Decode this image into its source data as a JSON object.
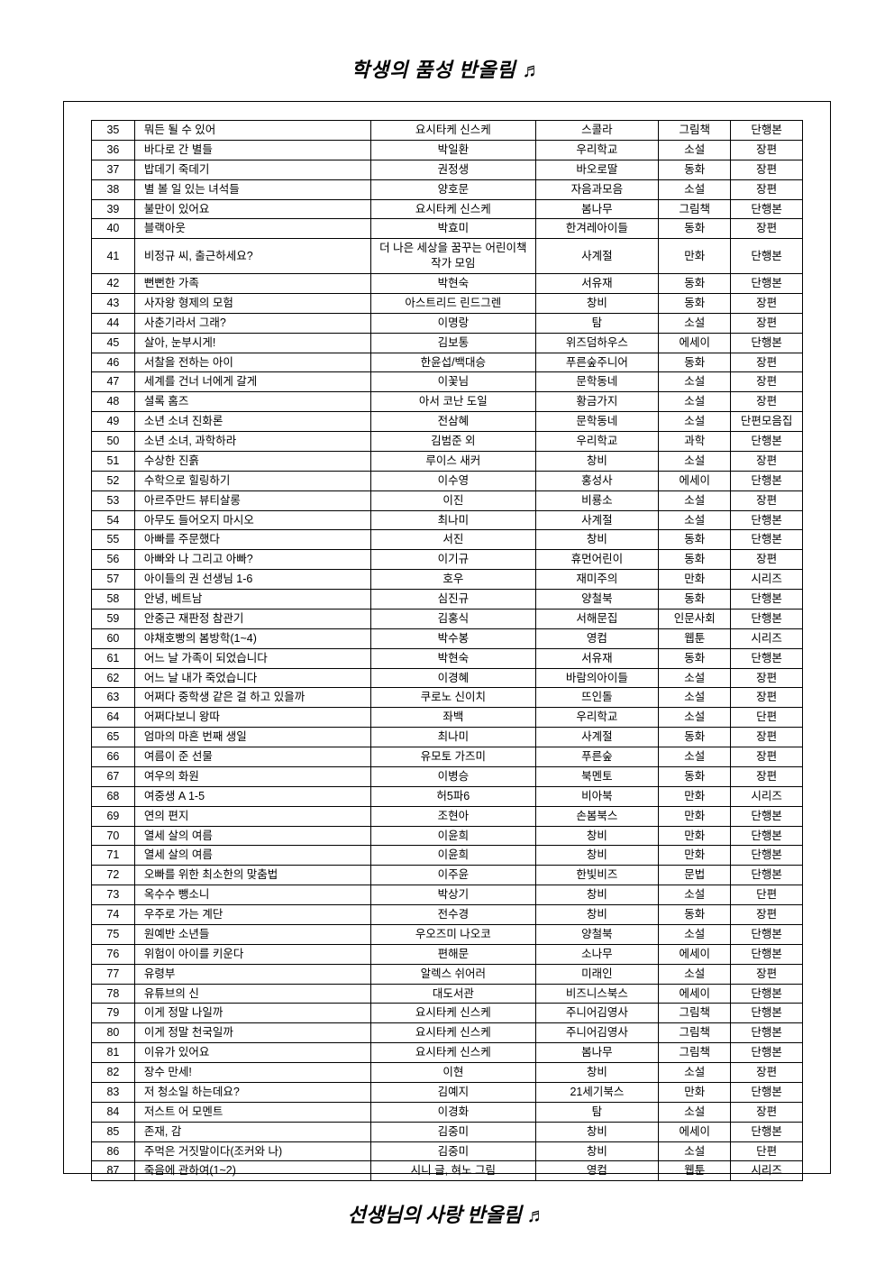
{
  "header": "학생의 품성 반올림 ♬",
  "footer": "선생님의 사랑 반올림 ♬",
  "columns": [
    "num",
    "title",
    "author",
    "publisher",
    "category",
    "format"
  ],
  "rows": [
    {
      "n": "35",
      "t": "뭐든 될 수 있어",
      "a": "요시타케 신스케",
      "p": "스콜라",
      "c": "그림책",
      "f": "단행본"
    },
    {
      "n": "36",
      "t": "바다로 간 별들",
      "a": "박일환",
      "p": "우리학교",
      "c": "소설",
      "f": "장편"
    },
    {
      "n": "37",
      "t": "밥데기 죽데기",
      "a": "권정생",
      "p": "바오로딸",
      "c": "동화",
      "f": "장편"
    },
    {
      "n": "38",
      "t": "별 볼 일 있는 녀석들",
      "a": "양호문",
      "p": "자음과모음",
      "c": "소설",
      "f": "장편"
    },
    {
      "n": "39",
      "t": "불만이 있어요",
      "a": "요시타케 신스케",
      "p": "봄나무",
      "c": "그림책",
      "f": "단행본"
    },
    {
      "n": "40",
      "t": "블랙아웃",
      "a": "박효미",
      "p": "한겨레아이들",
      "c": "동화",
      "f": "장편"
    },
    {
      "n": "41",
      "t": "비정규 씨, 출근하세요?",
      "a": "더 나은 세상을 꿈꾸는 어린이책 작가 모임",
      "p": "사계절",
      "c": "만화",
      "f": "단행본"
    },
    {
      "n": "42",
      "t": "뻔뻔한 가족",
      "a": "박현숙",
      "p": "서유재",
      "c": "동화",
      "f": "단행본"
    },
    {
      "n": "43",
      "t": "사자왕 형제의 모험",
      "a": "아스트리드 린드그렌",
      "p": "창비",
      "c": "동화",
      "f": "장편"
    },
    {
      "n": "44",
      "t": "사춘기라서 그래?",
      "a": "이명랑",
      "p": "탐",
      "c": "소설",
      "f": "장편"
    },
    {
      "n": "45",
      "t": "살아, 눈부시게!",
      "a": "김보통",
      "p": "위즈덤하우스",
      "c": "에세이",
      "f": "단행본"
    },
    {
      "n": "46",
      "t": "서찰을 전하는 아이",
      "a": "한윤섭/백대승",
      "p": "푸른숲주니어",
      "c": "동화",
      "f": "장편"
    },
    {
      "n": "47",
      "t": "세계를 건너 너에게 갈게",
      "a": "이꽃님",
      "p": "문학동네",
      "c": "소설",
      "f": "장편"
    },
    {
      "n": "48",
      "t": "셜록 홈즈",
      "a": "아서 코난 도일",
      "p": "황금가지",
      "c": "소설",
      "f": "장편"
    },
    {
      "n": "49",
      "t": "소년 소녀 진화론",
      "a": "전삼혜",
      "p": "문학동네",
      "c": "소설",
      "f": "단편모음집"
    },
    {
      "n": "50",
      "t": "소년 소녀, 과학하라",
      "a": "김범준 외",
      "p": "우리학교",
      "c": "과학",
      "f": "단행본"
    },
    {
      "n": "51",
      "t": "수상한 진흙",
      "a": "루이스 새커",
      "p": "창비",
      "c": "소설",
      "f": "장편"
    },
    {
      "n": "52",
      "t": "수학으로 힐링하기",
      "a": "이수영",
      "p": "홍성사",
      "c": "에세이",
      "f": "단행본"
    },
    {
      "n": "53",
      "t": "아르주만드 뷰티살롱",
      "a": "이진",
      "p": "비룡소",
      "c": "소설",
      "f": "장편"
    },
    {
      "n": "54",
      "t": "아무도 들어오지 마시오",
      "a": "최나미",
      "p": "사계절",
      "c": "소설",
      "f": "단행본"
    },
    {
      "n": "55",
      "t": "아빠를 주문했다",
      "a": "서진",
      "p": "창비",
      "c": "동화",
      "f": "단행본"
    },
    {
      "n": "56",
      "t": "아빠와 나 그리고 아빠?",
      "a": "이기규",
      "p": "휴먼어린이",
      "c": "동화",
      "f": "장편"
    },
    {
      "n": "57",
      "t": "아이들의 권 선생님 1-6",
      "a": "호우",
      "p": "재미주의",
      "c": "만화",
      "f": "시리즈"
    },
    {
      "n": "58",
      "t": "안녕, 베트남",
      "a": "심진규",
      "p": "양철북",
      "c": "동화",
      "f": "단행본"
    },
    {
      "n": "59",
      "t": "안중근 재판정 참관기",
      "a": "김홍식",
      "p": "서해문집",
      "c": "인문사회",
      "f": "단행본"
    },
    {
      "n": "60",
      "t": "야채호빵의 봄방학(1~4)",
      "a": "박수봉",
      "p": "영컴",
      "c": "웹툰",
      "f": "시리즈"
    },
    {
      "n": "61",
      "t": "어느 날 가족이 되었습니다",
      "a": "박현숙",
      "p": "서유재",
      "c": "동화",
      "f": "단행본"
    },
    {
      "n": "62",
      "t": "어느 날 내가 죽었습니다",
      "a": "이경혜",
      "p": "바람의아이들",
      "c": "소설",
      "f": "장편"
    },
    {
      "n": "63",
      "t": "어쩌다 중학생 같은 걸 하고 있을까",
      "a": "쿠로노 신이치",
      "p": "뜨인돌",
      "c": "소설",
      "f": "장편"
    },
    {
      "n": "64",
      "t": "어쩌다보니 왕따",
      "a": "좌백",
      "p": "우리학교",
      "c": "소설",
      "f": "단편"
    },
    {
      "n": "65",
      "t": "엄마의 마흔 번째 생일",
      "a": "최나미",
      "p": "사계절",
      "c": "동화",
      "f": "장편"
    },
    {
      "n": "66",
      "t": "여름이 준 선물",
      "a": "유모토 가즈미",
      "p": "푸른숲",
      "c": "소설",
      "f": "장편"
    },
    {
      "n": "67",
      "t": "여우의 화원",
      "a": "이병승",
      "p": "북멘토",
      "c": "동화",
      "f": "장편"
    },
    {
      "n": "68",
      "t": "여중생 A 1-5",
      "a": "허5파6",
      "p": "비아북",
      "c": "만화",
      "f": "시리즈"
    },
    {
      "n": "69",
      "t": "연의 편지",
      "a": "조현아",
      "p": "손봄북스",
      "c": "만화",
      "f": "단행본"
    },
    {
      "n": "70",
      "t": "열세 살의 여름",
      "a": "이윤희",
      "p": "창비",
      "c": "만화",
      "f": "단행본"
    },
    {
      "n": "71",
      "t": "열세 살의 여름",
      "a": "이윤희",
      "p": "창비",
      "c": "만화",
      "f": "단행본"
    },
    {
      "n": "72",
      "t": "오빠를 위한 최소한의 맞춤법",
      "a": "이주윤",
      "p": "한빛비즈",
      "c": "문법",
      "f": "단행본"
    },
    {
      "n": "73",
      "t": "옥수수 뺑소니",
      "a": "박상기",
      "p": "창비",
      "c": "소설",
      "f": "단편"
    },
    {
      "n": "74",
      "t": "우주로 가는 계단",
      "a": "전수경",
      "p": "창비",
      "c": "동화",
      "f": "장편"
    },
    {
      "n": "75",
      "t": "원예반 소년들",
      "a": "우오즈미 나오코",
      "p": "양철북",
      "c": "소설",
      "f": "단행본"
    },
    {
      "n": "76",
      "t": "위험이 아이를 키운다",
      "a": "편해문",
      "p": "소나무",
      "c": "에세이",
      "f": "단행본"
    },
    {
      "n": "77",
      "t": "유령부",
      "a": "알렉스 쉬어러",
      "p": "미래인",
      "c": "소설",
      "f": "장편"
    },
    {
      "n": "78",
      "t": "유튜브의 신",
      "a": "대도서관",
      "p": "비즈니스북스",
      "c": "에세이",
      "f": "단행본"
    },
    {
      "n": "79",
      "t": "이게 정말 나일까",
      "a": "요시타케 신스케",
      "p": "주니어김영사",
      "c": "그림책",
      "f": "단행본"
    },
    {
      "n": "80",
      "t": "이게 정말 천국일까",
      "a": "요시타케 신스케",
      "p": "주니어김영사",
      "c": "그림책",
      "f": "단행본"
    },
    {
      "n": "81",
      "t": "이유가 있어요",
      "a": "요시타케 신스케",
      "p": "봄나무",
      "c": "그림책",
      "f": "단행본"
    },
    {
      "n": "82",
      "t": "장수 만세!",
      "a": "이현",
      "p": "창비",
      "c": "소설",
      "f": "장편"
    },
    {
      "n": "83",
      "t": "저 청소일 하는데요?",
      "a": "김예지",
      "p": "21세기북스",
      "c": "만화",
      "f": "단행본"
    },
    {
      "n": "84",
      "t": "저스트 어 모멘트",
      "a": "이경화",
      "p": "탐",
      "c": "소설",
      "f": "장편"
    },
    {
      "n": "85",
      "t": "존재, 감",
      "a": "김중미",
      "p": "창비",
      "c": "에세이",
      "f": "단행본"
    },
    {
      "n": "86",
      "t": "주먹은 거짓말이다(조커와 나)",
      "a": "김중미",
      "p": "창비",
      "c": "소설",
      "f": "단편"
    },
    {
      "n": "87",
      "t": "죽음에 관하여(1~2)",
      "a": "시니 글, 혀노 그림",
      "p": "영컴",
      "c": "웹툰",
      "f": "시리즈"
    }
  ]
}
